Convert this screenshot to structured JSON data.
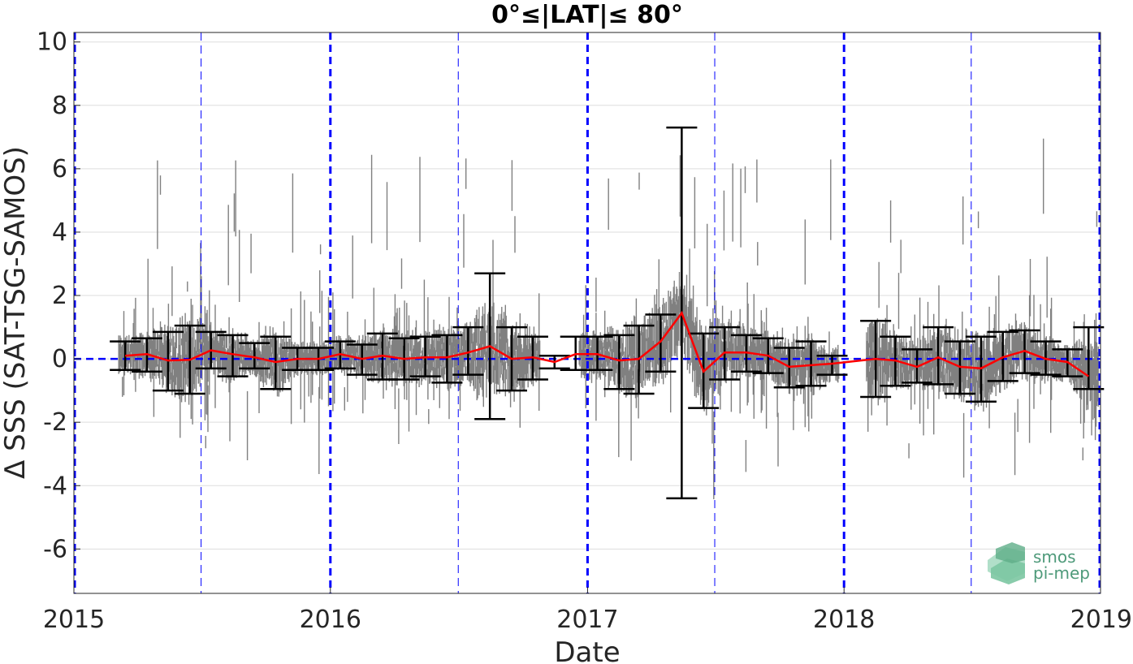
{
  "chart_data": {
    "type": "scatter",
    "title": "0°≤|LAT|≤ 80°",
    "xlabel": "Date",
    "ylabel": "Δ SSS (SAT-TSG-SAMOS)",
    "xlim": [
      "2015-01-01",
      "2019-01-01"
    ],
    "ylim": [
      -7.4,
      10.3
    ],
    "grid": "horizontal",
    "x_ticks": [
      "2015",
      "2016",
      "2017",
      "2018",
      "2019"
    ],
    "y_ticks": [
      {
        "value": 10,
        "label": "10"
      },
      {
        "value": 8,
        "label": "8"
      },
      {
        "value": 6,
        "label": "6"
      },
      {
        "value": 4,
        "label": "4"
      },
      {
        "value": 2,
        "label": "2"
      },
      {
        "value": 0,
        "label": "0"
      },
      {
        "value": -2,
        "label": "-2"
      },
      {
        "value": -4,
        "label": "-4"
      },
      {
        "value": -6,
        "label": "-6"
      }
    ],
    "reference_lines": {
      "year_boundaries": [
        "2015-01-01",
        "2016-01-01",
        "2017-01-01",
        "2018-01-01",
        "2019-01-01"
      ],
      "mid_years": [
        "2015-07-01",
        "2016-07-01",
        "2017-07-01",
        "2018-07-01"
      ],
      "zero_line": 0,
      "color": "#0000ff"
    },
    "colors": {
      "scatter": "#808080",
      "median": "#ff0000",
      "errorbar": "#000000",
      "reference": "#0000ff"
    },
    "series": [
      {
        "kind": "errorbar_median",
        "x": [
          "2015-03-15",
          "2015-04-15",
          "2015-05-15",
          "2015-06-15",
          "2015-07-15",
          "2015-08-15",
          "2015-09-15",
          "2015-10-15",
          "2015-11-15",
          "2015-12-15",
          "2016-01-15",
          "2016-02-15",
          "2016-03-15",
          "2016-04-15",
          "2016-05-15",
          "2016-06-15",
          "2016-07-15",
          "2016-08-15",
          "2016-09-15",
          "2016-10-15",
          "2016-11-15",
          "2016-12-15",
          "2017-01-15",
          "2017-02-15",
          "2017-03-15",
          "2017-04-15",
          "2017-05-15",
          "2017-06-15",
          "2017-07-15",
          "2017-08-15",
          "2017-09-15",
          "2017-10-15",
          "2017-11-15",
          "2017-12-15",
          "2018-02-15",
          "2018-03-15",
          "2018-04-15",
          "2018-05-15",
          "2018-06-15",
          "2018-07-15",
          "2018-08-15",
          "2018-09-15",
          "2018-10-15",
          "2018-11-15",
          "2018-12-15"
        ],
        "median": [
          0.1,
          0.15,
          -0.05,
          -0.03,
          0.27,
          0.15,
          0.05,
          -0.1,
          0.0,
          0.0,
          0.15,
          0.0,
          0.1,
          0.0,
          0.05,
          0.05,
          0.2,
          0.4,
          0.0,
          0.05,
          -0.1,
          0.15,
          0.15,
          -0.05,
          0.0,
          0.55,
          1.45,
          -0.4,
          0.2,
          0.2,
          0.1,
          -0.25,
          -0.2,
          -0.15,
          0.0,
          -0.05,
          -0.25,
          0.05,
          -0.25,
          -0.3,
          0.05,
          0.25,
          0.0,
          -0.1,
          -0.55
        ],
        "upper": [
          0.55,
          0.65,
          0.85,
          1.05,
          0.85,
          0.75,
          0.5,
          0.7,
          0.35,
          0.35,
          0.55,
          0.45,
          0.8,
          0.65,
          0.7,
          0.75,
          1.0,
          2.7,
          1.0,
          0.7,
          0.1,
          0.7,
          0.7,
          0.75,
          1.05,
          1.4,
          7.3,
          0.8,
          1.0,
          0.75,
          0.65,
          0.35,
          0.55,
          0.1,
          1.2,
          0.7,
          0.3,
          1.0,
          0.55,
          0.7,
          0.85,
          0.9,
          0.55,
          0.3,
          1.0
        ],
        "lower": [
          -0.35,
          -0.4,
          -1.0,
          -1.1,
          -0.3,
          -0.55,
          -0.3,
          -0.95,
          -0.35,
          -0.35,
          -0.3,
          -0.5,
          -0.65,
          -0.65,
          -0.55,
          -0.75,
          -0.5,
          -1.9,
          -1.0,
          -0.65,
          -0.3,
          -0.35,
          -0.35,
          -0.95,
          -1.1,
          -0.4,
          -4.4,
          -1.55,
          -0.65,
          -0.4,
          -0.45,
          -0.9,
          -0.85,
          -0.5,
          -1.2,
          -0.85,
          -0.75,
          -0.8,
          -1.1,
          -1.35,
          -0.7,
          -0.45,
          -0.5,
          -0.55,
          -0.95
        ]
      }
    ]
  },
  "logo": {
    "line1": "smos",
    "line2": "pi-mep"
  }
}
